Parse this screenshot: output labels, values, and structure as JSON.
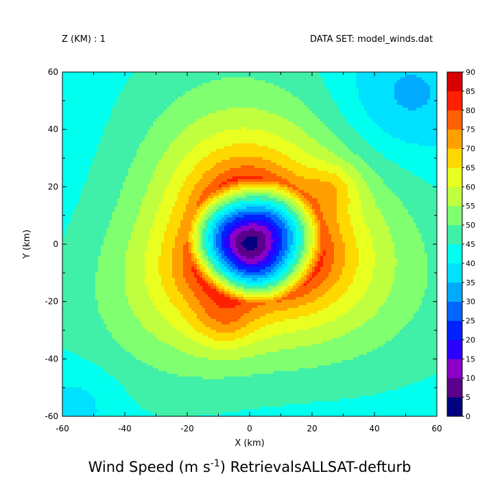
{
  "header": {
    "z_label": "Z (KM) : 1",
    "dataset_label": "DATA SET: model_winds.dat"
  },
  "chart_data": {
    "type": "heatmap",
    "title": "RetrievalsALLSAT-defturb",
    "quantity": "Wind Speed",
    "units": "m s-1",
    "xlabel": "X (km)",
    "ylabel": "Y (km)",
    "xlim": [
      -60,
      60
    ],
    "ylim": [
      -60,
      60
    ],
    "x_ticks": [
      -60,
      -40,
      -20,
      0,
      20,
      40,
      60
    ],
    "y_ticks": [
      -60,
      -40,
      -20,
      0,
      20,
      40,
      60
    ],
    "colorbar": {
      "levels": [
        0,
        5,
        10,
        15,
        20,
        25,
        30,
        35,
        40,
        45,
        50,
        55,
        60,
        65,
        70,
        75,
        80,
        85,
        90
      ],
      "colors": [
        "#000080",
        "#5a008a",
        "#8a00c8",
        "#2a00ff",
        "#0022ff",
        "#0066ff",
        "#00aaff",
        "#00e0ff",
        "#00ffee",
        "#40f0a8",
        "#80ff70",
        "#c0ff40",
        "#e8ff20",
        "#ffd800",
        "#ffa000",
        "#ff6000",
        "#ff2000",
        "#d80000",
        "#9a0000"
      ]
    },
    "field": {
      "description_values": {
        "eye_center_km": [
          0,
          0
        ],
        "eye_min": 2,
        "rmw_km": 22,
        "max_wind": 87,
        "outer_wind_at_60km": 40
      },
      "maxima_km": [
        [
          -8,
          -27
        ],
        [
          27,
          20
        ]
      ]
    }
  }
}
